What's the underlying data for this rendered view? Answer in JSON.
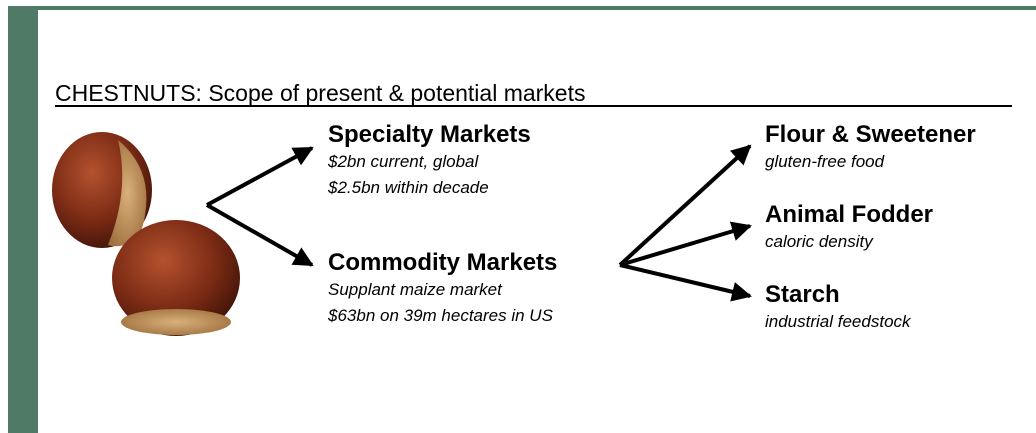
{
  "title": "CHESTNUTS: Scope of present & potential markets",
  "nodes": [
    {
      "label": "Specialty Markets",
      "lines": [
        "$2bn   current, global",
        "$2.5bn within decade"
      ]
    },
    {
      "label": "Commodity Markets",
      "lines": [
        "Supplant maize market",
        "$63bn on 39m hectares in US"
      ]
    },
    {
      "label": "Flour & Sweetener",
      "lines": [
        "gluten-free food"
      ]
    },
    {
      "label": "Animal Fodder",
      "lines": [
        "caloric density"
      ]
    },
    {
      "label": "Starch",
      "lines": [
        "industrial feedstock"
      ]
    }
  ]
}
